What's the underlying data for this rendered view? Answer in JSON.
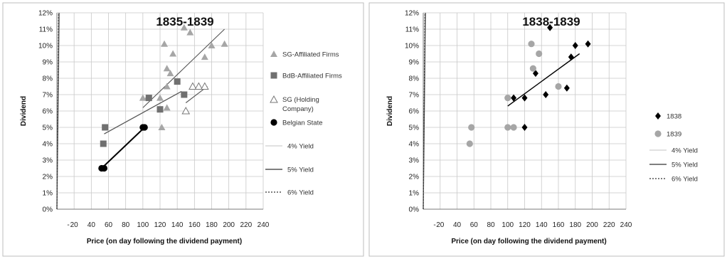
{
  "chart_data": [
    {
      "type": "scatter",
      "title": "1835-1839",
      "xlabel": "Price (on day following the dividend payment)",
      "ylabel": "Dividend",
      "xlim": [
        0,
        240
      ],
      "ylim": [
        0,
        12
      ],
      "x_ticks": [
        "-",
        "20",
        "40",
        "60",
        "80",
        "100",
        "120",
        "140",
        "160",
        "180",
        "200",
        "220",
        "240"
      ],
      "y_ticks": [
        "0%",
        "1%",
        "2%",
        "3%",
        "4%",
        "5%",
        "6%",
        "7%",
        "8%",
        "9%",
        "10%",
        "11%",
        "12%"
      ],
      "grid": true,
      "legend_position": "right",
      "series": [
        {
          "name": "SG-Affiliated Firms",
          "marker": "triangle",
          "color": "#a6a6a6",
          "points": [
            [
              100,
              6.8
            ],
            [
              105,
              6.8
            ],
            [
              120,
              6.8
            ],
            [
              122,
              5.0
            ],
            [
              125,
              10.1
            ],
            [
              128,
              8.6
            ],
            [
              128,
              7.5
            ],
            [
              132,
              8.3
            ],
            [
              135,
              9.5
            ],
            [
              148,
              11.1
            ],
            [
              155,
              10.8
            ],
            [
              172,
              9.3
            ],
            [
              180,
              10.0
            ],
            [
              195,
              10.1
            ],
            [
              128,
              6.2
            ]
          ]
        },
        {
          "name": "BdB-Affiliated Firms",
          "marker": "square",
          "color": "#707070",
          "points": [
            [
              54,
              4.0
            ],
            [
              56,
              5.0
            ],
            [
              107,
              6.8
            ],
            [
              120,
              6.1
            ],
            [
              140,
              7.8
            ],
            [
              148,
              7.0
            ]
          ]
        },
        {
          "name": "SG (Holding Company)",
          "marker": "triangle-open",
          "color": "#777777",
          "points": [
            [
              150,
              6.0
            ],
            [
              158,
              7.5
            ],
            [
              165,
              7.5
            ],
            [
              172,
              7.5
            ]
          ]
        },
        {
          "name": "Belgian State",
          "marker": "circle",
          "color": "#000000",
          "points": [
            [
              52,
              2.5
            ],
            [
              55,
              2.5
            ],
            [
              100,
              5.0
            ],
            [
              102,
              5.0
            ]
          ]
        }
      ],
      "trendlines": [
        {
          "points": [
            [
              52,
              2.5
            ],
            [
              102,
              5.0
            ]
          ],
          "color": "#000000",
          "width": 2
        },
        {
          "points": [
            [
              55,
              4.6
            ],
            [
              145,
              7.2
            ]
          ],
          "color": "#555555",
          "width": 1.3
        },
        {
          "points": [
            [
              100,
              6.2
            ],
            [
              195,
              11.0
            ]
          ],
          "color": "#555555",
          "width": 1.1
        },
        {
          "points": [
            [
              150,
              6.5
            ],
            [
              175,
              7.5
            ]
          ],
          "color": "#555555",
          "width": 1.1
        }
      ],
      "reference_lines": [
        {
          "name": "4% Yield",
          "slope": 0.04,
          "color": "#cfcfcf",
          "style": "solid",
          "width": 1.2
        },
        {
          "name": "5% Yield",
          "slope": 0.05,
          "color": "#555555",
          "style": "solid",
          "width": 1.4
        },
        {
          "name": "6% Yield",
          "slope": 0.06,
          "color": "#333333",
          "style": "dotted",
          "width": 1.2
        }
      ]
    },
    {
      "type": "scatter",
      "title": "1838-1839",
      "xlabel": "Price (on day following the dividend payment)",
      "ylabel": "Dividend",
      "xlim": [
        0,
        240
      ],
      "ylim": [
        0,
        12
      ],
      "x_ticks": [
        "-",
        "20",
        "40",
        "60",
        "80",
        "100",
        "120",
        "140",
        "160",
        "180",
        "200",
        "220",
        "240"
      ],
      "y_ticks": [
        "0%",
        "1%",
        "2%",
        "3%",
        "4%",
        "5%",
        "6%",
        "7%",
        "8%",
        "9%",
        "10%",
        "11%",
        "12%"
      ],
      "grid": true,
      "legend_position": "right",
      "series": [
        {
          "name": "1838",
          "marker": "diamond",
          "color": "#000000",
          "points": [
            [
              107,
              6.8
            ],
            [
              120,
              6.8
            ],
            [
              120,
              5.0
            ],
            [
              133,
              8.3
            ],
            [
              145,
              7.0
            ],
            [
              150,
              11.1
            ],
            [
              170,
              7.4
            ],
            [
              175,
              9.3
            ],
            [
              180,
              10.0
            ],
            [
              195,
              10.1
            ]
          ]
        },
        {
          "name": "1839",
          "marker": "circle",
          "color": "#a6a6a6",
          "points": [
            [
              55,
              4.0
            ],
            [
              57,
              5.0
            ],
            [
              100,
              5.0
            ],
            [
              100,
              6.8
            ],
            [
              107,
              5.0
            ],
            [
              128,
              10.1
            ],
            [
              130,
              8.6
            ],
            [
              137,
              9.5
            ],
            [
              160,
              7.5
            ]
          ]
        }
      ],
      "trendlines": [
        {
          "points": [
            [
              100,
              6.3
            ],
            [
              185,
              9.5
            ]
          ],
          "color": "#000000",
          "width": 1.4
        }
      ],
      "reference_lines": [
        {
          "name": "4% Yield",
          "slope": 0.04,
          "color": "#cfcfcf",
          "style": "solid",
          "width": 1.2
        },
        {
          "name": "5% Yield",
          "slope": 0.05,
          "color": "#555555",
          "style": "solid",
          "width": 1.4
        },
        {
          "name": "6% Yield",
          "slope": 0.06,
          "color": "#333333",
          "style": "dotted",
          "width": 1.2
        }
      ]
    }
  ]
}
